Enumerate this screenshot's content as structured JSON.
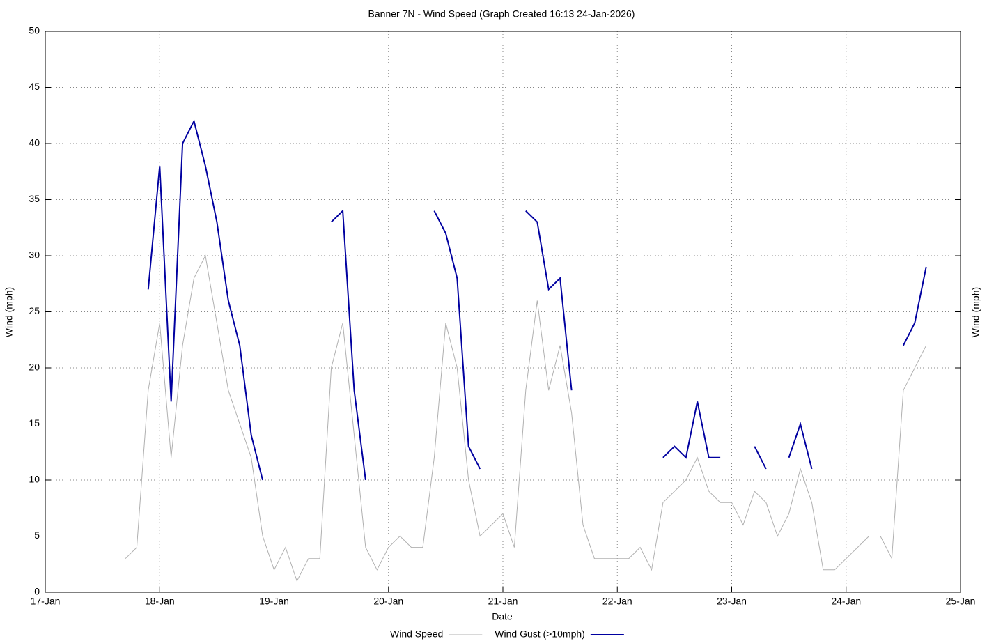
{
  "chart_data": {
    "type": "line",
    "title": "Banner 7N - Wind Speed (Graph Created 16:13 24-Jan-2026)",
    "x_label": "Date",
    "y_label": "Wind (mph)",
    "y2_label": "Wind (mph)",
    "x": [
      17.7,
      17.8,
      17.9,
      18.0,
      18.1,
      18.2,
      18.3,
      18.4,
      18.5,
      18.6,
      18.7,
      18.8,
      18.9,
      19.0,
      19.1,
      19.2,
      19.3,
      19.4,
      19.5,
      19.6,
      19.7,
      19.8,
      19.9,
      20.0,
      20.1,
      20.2,
      20.3,
      20.4,
      20.5,
      20.6,
      20.7,
      20.8,
      20.9,
      21.0,
      21.1,
      21.2,
      21.3,
      21.4,
      21.5,
      21.6,
      21.7,
      21.8,
      21.9,
      22.0,
      22.1,
      22.2,
      22.3,
      22.4,
      22.5,
      22.6,
      22.7,
      22.8,
      22.9,
      23.0,
      23.1,
      23.2,
      23.3,
      23.4,
      23.5,
      23.6,
      23.7,
      23.8,
      23.9,
      24.0,
      24.1,
      24.2,
      24.3,
      24.4,
      24.5,
      24.6,
      24.7
    ],
    "series": [
      {
        "name": "Wind Speed",
        "color": "#b0b0b0",
        "width": 1,
        "values": [
          3,
          4,
          18,
          24,
          12,
          22,
          28,
          30,
          24,
          18,
          15,
          12,
          5,
          2,
          4,
          1,
          3,
          3,
          20,
          24,
          14,
          4,
          2,
          4,
          5,
          4,
          4,
          12,
          24,
          20,
          10,
          5,
          6,
          7,
          4,
          18,
          26,
          18,
          22,
          16,
          6,
          3,
          3,
          3,
          3,
          4,
          2,
          8,
          9,
          10,
          12,
          9,
          8,
          8,
          6,
          9,
          8,
          5,
          7,
          11,
          8,
          2,
          2,
          3,
          4,
          5,
          5,
          3,
          18,
          20,
          22
        ]
      },
      {
        "name": "Wind Gust (>10mph)",
        "color": "#0000a0",
        "width": 2,
        "values": [
          null,
          null,
          27,
          38,
          17,
          40,
          42,
          38,
          33,
          26,
          22,
          14,
          10,
          null,
          null,
          null,
          null,
          null,
          33,
          34,
          18,
          10,
          null,
          null,
          null,
          null,
          null,
          34,
          32,
          28,
          13,
          11,
          null,
          null,
          null,
          34,
          33,
          27,
          28,
          18,
          null,
          null,
          null,
          null,
          null,
          null,
          null,
          12,
          13,
          12,
          17,
          12,
          12,
          null,
          null,
          13,
          11,
          null,
          12,
          15,
          11,
          null,
          null,
          null,
          null,
          null,
          null,
          null,
          22,
          24,
          29
        ]
      }
    ],
    "xlim": [
      17,
      25
    ],
    "xticks": [
      {
        "value": 17,
        "label": "17-Jan"
      },
      {
        "value": 18,
        "label": "18-Jan"
      },
      {
        "value": 19,
        "label": "19-Jan"
      },
      {
        "value": 20,
        "label": "20-Jan"
      },
      {
        "value": 21,
        "label": "21-Jan"
      },
      {
        "value": 22,
        "label": "22-Jan"
      },
      {
        "value": 23,
        "label": "23-Jan"
      },
      {
        "value": 24,
        "label": "24-Jan"
      },
      {
        "value": 25,
        "label": "25-Jan"
      }
    ],
    "ylim": [
      0,
      50
    ],
    "yticks": [
      0,
      5,
      10,
      15,
      20,
      25,
      30,
      35,
      40,
      45,
      50
    ],
    "grid": true,
    "legend": "bottom"
  }
}
